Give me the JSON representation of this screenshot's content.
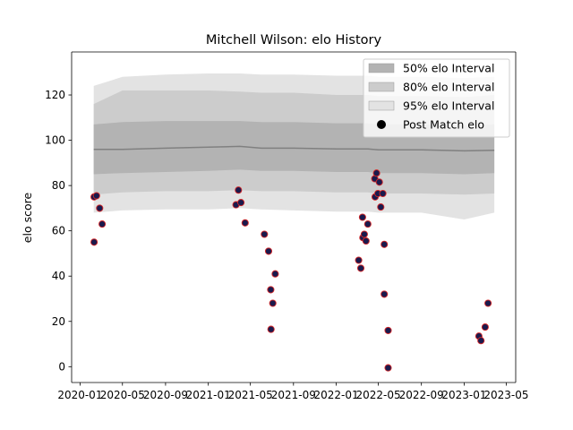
{
  "chart_data": {
    "type": "line",
    "title": "Mitchell Wilson: elo History",
    "xlabel": "",
    "ylabel": "elo score",
    "x_tick_labels": [
      "2020-01",
      "2020-05",
      "2020-09",
      "2021-01",
      "2021-05",
      "2021-09",
      "2022-01",
      "2022-05",
      "2022-09",
      "2023-01",
      "2023-05"
    ],
    "x_ticks": [
      "2020-01-01",
      "2020-05-01",
      "2020-09-01",
      "2021-01-01",
      "2021-05-01",
      "2021-09-01",
      "2022-01-01",
      "2022-05-01",
      "2022-09-01",
      "2023-01-01",
      "2023-05-01"
    ],
    "xlim": [
      "2019-12-08",
      "2023-05-28"
    ],
    "y_ticks": [
      0,
      20,
      40,
      60,
      80,
      100,
      120
    ],
    "ylim": [
      -7,
      139
    ],
    "grid": false,
    "legend_position": "top-right",
    "legend": [
      {
        "label": "50% elo Interval",
        "kind": "band",
        "color": "#b3b3b3"
      },
      {
        "label": "80% elo Interval",
        "kind": "band",
        "color": "#cccccc"
      },
      {
        "label": "95% elo Interval",
        "kind": "band",
        "color": "#e3e3e3"
      },
      {
        "label": "Post Match elo",
        "kind": "marker",
        "color": "#000000"
      }
    ],
    "colors": {
      "band50": "#b3b3b3",
      "band80": "#cccccc",
      "band95": "#e3e3e3",
      "mean_line": "#808080",
      "marker_fill": "#1a1a4d",
      "marker_edge": "#d62728"
    },
    "bands": {
      "x": [
        "2020-02-09",
        "2020-05-01",
        "2020-09-01",
        "2021-01-01",
        "2021-04-01",
        "2021-06-01",
        "2021-09-01",
        "2022-01-01",
        "2022-04-01",
        "2022-05-01",
        "2022-09-01",
        "2023-01-01",
        "2023-03-28"
      ],
      "mean": [
        96,
        96,
        96.5,
        97,
        97.3,
        96.5,
        96.5,
        96.2,
        96.2,
        95.8,
        95.8,
        95.3,
        95.6
      ],
      "p50_low": [
        85,
        85.5,
        86,
        86.5,
        87,
        86.5,
        86.5,
        86,
        86,
        85.5,
        85.5,
        85,
        85.5
      ],
      "p50_high": [
        107,
        108,
        108.5,
        108.5,
        108.5,
        108,
        108,
        107.5,
        107.5,
        107,
        107,
        106.5,
        107
      ],
      "p80_low": [
        76,
        77,
        77.5,
        77.5,
        78,
        77.5,
        77.5,
        77,
        77,
        76.5,
        76.5,
        76,
        76.5
      ],
      "p80_high": [
        116,
        122,
        122,
        122,
        121.5,
        121,
        121,
        120,
        120,
        119.5,
        119.5,
        119,
        120
      ],
      "p95_low": [
        68,
        69,
        69.5,
        69.5,
        70,
        69.5,
        69,
        68.5,
        68.5,
        68,
        68,
        65,
        68
      ],
      "p95_high": [
        124,
        128,
        129,
        129.5,
        129.5,
        129,
        129,
        128.5,
        128.5,
        128,
        128,
        127.5,
        128
      ]
    },
    "points": [
      {
        "x": "2020-02-10",
        "y": 55
      },
      {
        "x": "2020-02-10",
        "y": 75
      },
      {
        "x": "2020-02-17",
        "y": 75.5
      },
      {
        "x": "2020-02-26",
        "y": 70
      },
      {
        "x": "2020-03-04",
        "y": 63
      },
      {
        "x": "2021-03-21",
        "y": 71.5
      },
      {
        "x": "2021-03-28",
        "y": 78
      },
      {
        "x": "2021-04-04",
        "y": 72.5
      },
      {
        "x": "2021-04-16",
        "y": 63.5
      },
      {
        "x": "2021-06-10",
        "y": 58.5
      },
      {
        "x": "2021-06-22",
        "y": 51
      },
      {
        "x": "2021-06-28",
        "y": 34
      },
      {
        "x": "2021-06-29",
        "y": 16.5
      },
      {
        "x": "2021-07-04",
        "y": 28
      },
      {
        "x": "2021-07-11",
        "y": 41
      },
      {
        "x": "2022-03-06",
        "y": 47
      },
      {
        "x": "2022-03-12",
        "y": 43.5
      },
      {
        "x": "2022-03-17",
        "y": 66
      },
      {
        "x": "2022-03-18",
        "y": 57
      },
      {
        "x": "2022-03-22",
        "y": 58.5
      },
      {
        "x": "2022-03-27",
        "y": 55.5
      },
      {
        "x": "2022-04-01",
        "y": 63
      },
      {
        "x": "2022-04-21",
        "y": 83
      },
      {
        "x": "2022-04-22",
        "y": 75
      },
      {
        "x": "2022-04-26",
        "y": 85.5
      },
      {
        "x": "2022-04-30",
        "y": 76.5
      },
      {
        "x": "2022-05-04",
        "y": 81.5
      },
      {
        "x": "2022-05-08",
        "y": 70.5
      },
      {
        "x": "2022-05-14",
        "y": 76.5
      },
      {
        "x": "2022-05-18",
        "y": 54
      },
      {
        "x": "2022-05-18",
        "y": 32
      },
      {
        "x": "2022-05-29",
        "y": 16
      },
      {
        "x": "2022-05-29",
        "y": -0.5
      },
      {
        "x": "2023-02-12",
        "y": 13.5
      },
      {
        "x": "2023-02-18",
        "y": 11.5
      },
      {
        "x": "2023-03-02",
        "y": 17.5
      },
      {
        "x": "2023-03-10",
        "y": 28
      }
    ]
  }
}
